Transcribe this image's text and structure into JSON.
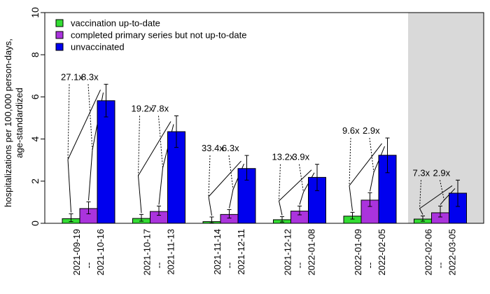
{
  "chart_data": {
    "type": "bar",
    "title": "",
    "xlabel": "",
    "ylabel": "hospitalizations per 100,000 person-days, age-standardized",
    "ylim": [
      0,
      10
    ],
    "yticks": [
      0,
      2,
      4,
      6,
      8,
      10
    ],
    "grid": false,
    "legend_position": "top-left",
    "categories": [
      "2021-09-19 -- 2021-10-16",
      "2021-10-17 -- 2021-11-13",
      "2021-11-14 -- 2021-12-11",
      "2021-12-12 -- 2022-01-08",
      "2022-01-09 -- 2022-02-05",
      "2022-02-06 -- 2022-03-05"
    ],
    "periods": [
      {
        "start": "2021-09-19",
        "sep": "--",
        "end": "2021-10-16"
      },
      {
        "start": "2021-10-17",
        "sep": "--",
        "end": "2021-11-13"
      },
      {
        "start": "2021-11-14",
        "sep": "--",
        "end": "2021-12-11"
      },
      {
        "start": "2021-12-12",
        "sep": "--",
        "end": "2022-01-08"
      },
      {
        "start": "2022-01-09",
        "sep": "--",
        "end": "2022-02-05"
      },
      {
        "start": "2022-02-06",
        "sep": "--",
        "end": "2022-03-05"
      }
    ],
    "series": [
      {
        "name": "vaccination up-to-date",
        "color": "#33dd33",
        "values": [
          0.22,
          0.23,
          0.08,
          0.17,
          0.34,
          0.2
        ],
        "err_low": [
          0.08,
          0.1,
          0.02,
          0.06,
          0.2,
          0.1
        ],
        "err_high": [
          0.45,
          0.42,
          0.3,
          0.32,
          0.52,
          0.35
        ]
      },
      {
        "name": "completed primary series but not up-to-date",
        "color": "#aa33dd",
        "values": [
          0.7,
          0.56,
          0.42,
          0.58,
          1.1,
          0.5
        ],
        "err_low": [
          0.45,
          0.38,
          0.25,
          0.4,
          0.8,
          0.3
        ],
        "err_high": [
          1.02,
          0.82,
          0.65,
          0.82,
          1.45,
          0.82
        ]
      },
      {
        "name": "unvaccinated",
        "color": "#0000ee",
        "values": [
          5.82,
          4.35,
          2.6,
          2.18,
          3.23,
          1.43
        ],
        "err_low": [
          5.05,
          3.6,
          2.05,
          1.55,
          2.4,
          0.8
        ],
        "err_high": [
          6.6,
          5.1,
          3.22,
          2.8,
          4.05,
          2.05
        ]
      }
    ],
    "ratio_labels": [
      {
        "unvax_vs_uptodate": "27.1x",
        "unvax_vs_primary": "8.3x"
      },
      {
        "unvax_vs_uptodate": "19.2x",
        "unvax_vs_primary": "7.8x"
      },
      {
        "unvax_vs_uptodate": "33.4x",
        "unvax_vs_primary": "6.3x"
      },
      {
        "unvax_vs_uptodate": "13.2x",
        "unvax_vs_primary": "3.9x"
      },
      {
        "unvax_vs_uptodate": "9.6x",
        "unvax_vs_primary": "2.9x"
      },
      {
        "unvax_vs_uptodate": "7.3x",
        "unvax_vs_primary": "2.9x"
      }
    ],
    "shaded_period_index": 5,
    "shade_color": "#d9d9d9"
  }
}
